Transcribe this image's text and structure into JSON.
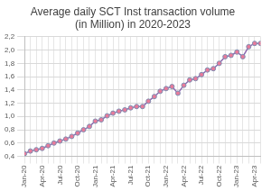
{
  "chart_data": {
    "type": "line",
    "title": "Average daily SCT Inst transaction volume (in Million) in 2020-2023",
    "categories": [
      "Jan-20",
      null,
      null,
      "Apr-20",
      null,
      null,
      "Jul-20",
      null,
      null,
      "Oct-20",
      null,
      null,
      "Jan-21",
      null,
      null,
      "Apr-21",
      null,
      null,
      "Jul-21",
      null,
      null,
      "Oct-21",
      null,
      null,
      "Jan-22",
      null,
      null,
      "Apr-22",
      null,
      null,
      "Jul-22",
      null,
      null,
      "Oct-22",
      null,
      null,
      "Jan-23",
      null,
      null,
      "Apr-23",
      null
    ],
    "values": [
      0.44,
      0.48,
      0.5,
      0.52,
      0.56,
      0.6,
      0.63,
      0.66,
      0.7,
      0.75,
      0.8,
      0.85,
      0.93,
      0.95,
      1.01,
      1.05,
      1.08,
      1.1,
      1.13,
      1.15,
      1.15,
      1.23,
      1.3,
      1.38,
      1.42,
      1.45,
      1.35,
      1.47,
      1.55,
      1.57,
      1.63,
      1.7,
      1.72,
      1.8,
      1.9,
      1.92,
      1.97,
      1.9,
      2.05,
      2.1,
      2.1
    ],
    "color": "#8e6bb0",
    "marker": "circle",
    "line_style": "solid",
    "ylim": [
      0.4,
      2.2
    ],
    "yticks": [
      {
        "value": 0.4,
        "label": "0,4"
      },
      {
        "value": 0.6,
        "label": "0,6"
      },
      {
        "value": 0.8,
        "label": "0,8"
      },
      {
        "value": 1.0,
        "label": "1,0"
      },
      {
        "value": 1.2,
        "label": "1,2"
      },
      {
        "value": 1.4,
        "label": "1,4"
      },
      {
        "value": 1.6,
        "label": "1,6"
      },
      {
        "value": 1.8,
        "label": "1,8"
      },
      {
        "value": 2.0,
        "label": "2,0"
      },
      {
        "value": 2.2,
        "label": "2,2"
      }
    ],
    "grid": true
  }
}
